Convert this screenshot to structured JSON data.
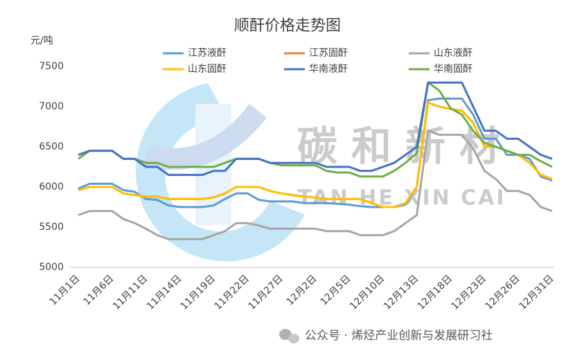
{
  "chart_data": {
    "type": "line",
    "title": "顺酐价格走势图",
    "y_label": "元/吨",
    "categories": [
      "11月1日",
      null,
      null,
      "11月6日",
      null,
      null,
      "11月11日",
      null,
      null,
      "11月14日",
      null,
      null,
      "11月19日",
      null,
      null,
      "11月22日",
      null,
      null,
      "11月27日",
      null,
      null,
      "12月2日",
      null,
      null,
      "12月5日",
      null,
      null,
      "12月10日",
      null,
      null,
      "12月13日",
      null,
      null,
      "12月18日",
      null,
      null,
      "12月23日",
      null,
      null,
      "12月26日",
      null,
      null,
      "12月31日"
    ],
    "series": [
      {
        "name": "江苏液酐",
        "color": "#5b9bd5",
        "values": [
          5980,
          6040,
          6040,
          6040,
          5960,
          5940,
          5850,
          5840,
          5770,
          5750,
          5750,
          5750,
          5770,
          5850,
          5920,
          5920,
          5840,
          5820,
          5820,
          5820,
          5800,
          5800,
          5800,
          5790,
          5780,
          5760,
          5750,
          5750,
          5750,
          5780,
          6000,
          7080,
          7100,
          7100,
          7100,
          6900,
          6600,
          6600,
          6400,
          6400,
          6350,
          6130,
          6080
        ]
      },
      {
        "name": "江苏固酐",
        "color": "#ed7d31",
        "values": [
          5960,
          6000,
          6000,
          6000,
          5920,
          5900,
          5880,
          5880,
          5850,
          5850,
          5850,
          5850,
          5870,
          5920,
          6000,
          6000,
          6000,
          5950,
          5920,
          5900,
          5880,
          5870,
          5850,
          5850,
          5850,
          5850,
          5800,
          5750,
          5750,
          5800,
          6000,
          7050,
          7000,
          6970,
          6950,
          6800,
          6500,
          6500,
          6450,
          6400,
          6300,
          6150,
          6100
        ]
      },
      {
        "name": "山东液酐",
        "color": "#a5a5a5",
        "values": [
          5650,
          5700,
          5700,
          5700,
          5600,
          5550,
          5480,
          5400,
          5350,
          5350,
          5350,
          5350,
          5400,
          5450,
          5550,
          5550,
          5520,
          5480,
          5480,
          5480,
          5480,
          5480,
          5450,
          5450,
          5450,
          5400,
          5400,
          5400,
          5450,
          5550,
          5650,
          6700,
          6650,
          6650,
          6650,
          6480,
          6200,
          6100,
          5950,
          5950,
          5900,
          5750,
          5700
        ]
      },
      {
        "name": "山东固酐",
        "color": "#ffc000",
        "values": [
          5960,
          6000,
          6000,
          6000,
          5920,
          5900,
          5880,
          5880,
          5850,
          5850,
          5850,
          5850,
          5870,
          5920,
          6000,
          6000,
          6000,
          5950,
          5920,
          5900,
          5880,
          5870,
          5850,
          5850,
          5850,
          5850,
          5800,
          5750,
          5750,
          5800,
          6000,
          7050,
          7000,
          6970,
          6950,
          6800,
          6500,
          6500,
          6450,
          6400,
          6300,
          6150,
          6100
        ]
      },
      {
        "name": "华南液酐",
        "color": "#4472c4",
        "values": [
          6400,
          6450,
          6450,
          6450,
          6350,
          6350,
          6250,
          6250,
          6150,
          6150,
          6150,
          6150,
          6200,
          6200,
          6350,
          6350,
          6350,
          6300,
          6300,
          6300,
          6300,
          6300,
          6250,
          6250,
          6250,
          6200,
          6200,
          6250,
          6300,
          6400,
          6500,
          7300,
          7300,
          7300,
          7300,
          7000,
          6700,
          6700,
          6600,
          6600,
          6500,
          6400,
          6350
        ]
      },
      {
        "name": "华南固酐",
        "color": "#70ad47",
        "values": [
          6350,
          6450,
          6450,
          6450,
          6350,
          6350,
          6300,
          6300,
          6250,
          6250,
          6250,
          6250,
          6250,
          6300,
          6350,
          6350,
          6350,
          6300,
          6270,
          6270,
          6270,
          6270,
          6200,
          6180,
          6180,
          6130,
          6130,
          6130,
          6200,
          6300,
          6420,
          7300,
          7200,
          6980,
          6900,
          6700,
          6550,
          6500,
          6450,
          6400,
          6400,
          6320,
          6250
        ]
      }
    ],
    "ylim": [
      5000,
      7500
    ],
    "yticks": [
      5000,
      5500,
      6000,
      6500,
      7000,
      7500
    ],
    "grid": false,
    "legend": "top",
    "watermark": {
      "name": "碳 和 新 材",
      "pinyin": "TAN HE XIN CAI"
    },
    "footer": "公众号 · 烯烃产业创新与发展研习社"
  }
}
